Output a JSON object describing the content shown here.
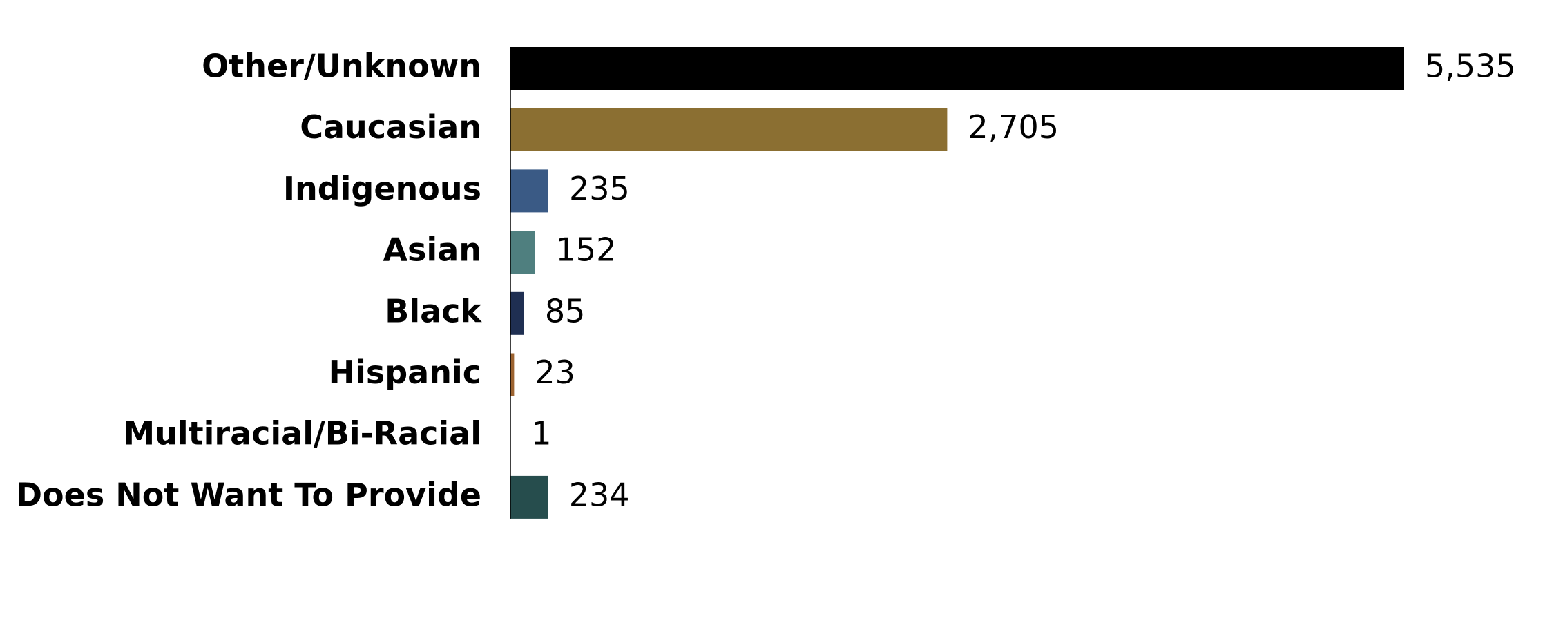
{
  "chart_data": {
    "type": "hbar",
    "categories": [
      "Other/Unknown",
      "Caucasian",
      "Indigenous",
      "Asian",
      "Black",
      "Hispanic",
      "Multiracial/Bi-Racial",
      "Does Not Want To Provide"
    ],
    "values": [
      5535,
      2705,
      235,
      152,
      85,
      23,
      1,
      234
    ],
    "value_labels": [
      "5,535",
      "2,705",
      "235",
      "152",
      "85",
      "23",
      "1",
      "234"
    ],
    "colors": [
      "#000000",
      "#8b6f32",
      "#3a5a85",
      "#4f7f7f",
      "#1f2f52",
      "#9c6330",
      "#5a4a7a",
      "#264d4d"
    ]
  }
}
